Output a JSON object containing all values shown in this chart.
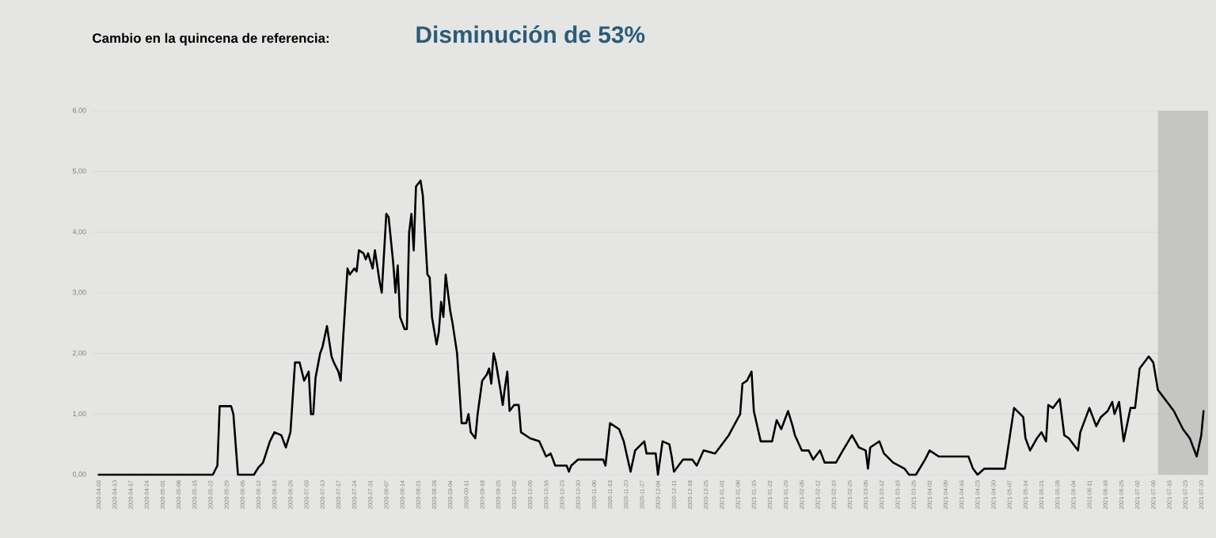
{
  "chart_data": {
    "type": "line",
    "title": "Cambio en la quincena de referencia:",
    "subtitle": "Disminución de 53%",
    "x": [
      "2020-04-03",
      "2020-05-23",
      "2020-05-25",
      "2020-05-26",
      "2020-05-31",
      "2020-06-01",
      "2020-06-03",
      "2020-06-10",
      "2020-06-12",
      "2020-06-14",
      "2020-06-17",
      "2020-06-19",
      "2020-06-22",
      "2020-06-24",
      "2020-06-26",
      "2020-06-28",
      "2020-06-30",
      "2020-07-02",
      "2020-07-04",
      "2020-07-05",
      "2020-07-06",
      "2020-07-07",
      "2020-07-09",
      "2020-07-10",
      "2020-07-12",
      "2020-07-14",
      "2020-07-15",
      "2020-07-17",
      "2020-07-18",
      "2020-07-19",
      "2020-07-21",
      "2020-07-22",
      "2020-07-24",
      "2020-07-25",
      "2020-07-26",
      "2020-07-28",
      "2020-07-29",
      "2020-07-30",
      "2020-08-01",
      "2020-08-02",
      "2020-08-04",
      "2020-08-05",
      "2020-08-07",
      "2020-08-08",
      "2020-08-10",
      "2020-08-11",
      "2020-08-12",
      "2020-08-13",
      "2020-08-15",
      "2020-08-16",
      "2020-08-17",
      "2020-08-18",
      "2020-08-19",
      "2020-08-20",
      "2020-08-22",
      "2020-08-23",
      "2020-08-25",
      "2020-08-26",
      "2020-08-27",
      "2020-08-29",
      "2020-08-30",
      "2020-08-31",
      "2020-09-01",
      "2020-09-02",
      "2020-09-04",
      "2020-09-05",
      "2020-09-07",
      "2020-09-09",
      "2020-09-11",
      "2020-09-12",
      "2020-09-13",
      "2020-09-15",
      "2020-09-16",
      "2020-09-18",
      "2020-09-20",
      "2020-09-21",
      "2020-09-22",
      "2020-09-23",
      "2020-09-24",
      "2020-09-26",
      "2020-09-27",
      "2020-09-28",
      "2020-09-29",
      "2020-09-30",
      "2020-10-02",
      "2020-10-04",
      "2020-10-05",
      "2020-10-09",
      "2020-10-13",
      "2020-10-16",
      "2020-10-18",
      "2020-10-20",
      "2020-10-25",
      "2020-10-26",
      "2020-10-27",
      "2020-10-30",
      "2020-11-10",
      "2020-11-11",
      "2020-11-13",
      "2020-11-17",
      "2020-11-19",
      "2020-11-22",
      "2020-11-24",
      "2020-11-28",
      "2020-11-29",
      "2020-12-03",
      "2020-12-04",
      "2020-12-06",
      "2020-12-09",
      "2020-12-10",
      "2020-12-11",
      "2020-12-15",
      "2020-12-19",
      "2020-12-21",
      "2020-12-24",
      "2020-12-29",
      "2021-01-01",
      "2021-01-04",
      "2021-01-09",
      "2021-01-10",
      "2021-01-12",
      "2021-01-14",
      "2021-01-15",
      "2021-01-18",
      "2021-01-23",
      "2021-01-25",
      "2021-01-27",
      "2021-01-30",
      "2021-02-01",
      "2021-02-02",
      "2021-02-05",
      "2021-02-08",
      "2021-02-10",
      "2021-02-13",
      "2021-02-15",
      "2021-02-20",
      "2021-02-23",
      "2021-02-27",
      "2021-03-02",
      "2021-03-05",
      "2021-03-06",
      "2021-03-07",
      "2021-03-11",
      "2021-03-13",
      "2021-03-17",
      "2021-03-22",
      "2021-03-24",
      "2021-03-27",
      "2021-03-31",
      "2021-04-02",
      "2021-04-06",
      "2021-04-19",
      "2021-04-21",
      "2021-04-23",
      "2021-04-26",
      "2021-05-05",
      "2021-05-09",
      "2021-05-13",
      "2021-05-14",
      "2021-05-16",
      "2021-05-19",
      "2021-05-21",
      "2021-05-23",
      "2021-05-24",
      "2021-05-26",
      "2021-05-29",
      "2021-05-31",
      "2021-06-02",
      "2021-06-06",
      "2021-06-07",
      "2021-06-11",
      "2021-06-14",
      "2021-06-16",
      "2021-06-19",
      "2021-06-21",
      "2021-06-22",
      "2021-06-24",
      "2021-06-26",
      "2021-06-29",
      "2021-07-01",
      "2021-07-03",
      "2021-07-07",
      "2021-07-09",
      "2021-07-11",
      "2021-07-15",
      "2021-07-18",
      "2021-07-22",
      "2021-07-25",
      "2021-07-28",
      "2021-07-30",
      "2021-07-31"
    ],
    "values": [
      0,
      0,
      0.15,
      1.13,
      1.13,
      1.0,
      0,
      0,
      0.12,
      0.2,
      0.55,
      0.7,
      0.65,
      0.45,
      0.7,
      1.85,
      1.85,
      1.55,
      1.7,
      1.0,
      1.0,
      1.6,
      2.0,
      2.1,
      2.45,
      1.95,
      1.85,
      1.7,
      1.55,
      2.2,
      3.4,
      3.3,
      3.4,
      3.35,
      3.7,
      3.65,
      3.55,
      3.65,
      3.4,
      3.7,
      3.2,
      3.0,
      4.3,
      4.25,
      3.5,
      3.0,
      3.45,
      2.6,
      2.4,
      2.4,
      4.0,
      4.3,
      3.7,
      4.75,
      4.85,
      4.6,
      3.3,
      3.25,
      2.6,
      2.15,
      2.35,
      2.85,
      2.6,
      3.3,
      2.7,
      2.5,
      2.0,
      0.85,
      0.85,
      1.0,
      0.7,
      0.6,
      1.0,
      1.55,
      1.65,
      1.75,
      1.5,
      2.0,
      1.85,
      1.4,
      1.15,
      1.45,
      1.7,
      1.05,
      1.15,
      1.15,
      0.7,
      0.6,
      0.55,
      0.3,
      0.35,
      0.15,
      0.15,
      0.05,
      0.15,
      0.25,
      0.25,
      0.15,
      0.85,
      0.75,
      0.55,
      0.05,
      0.4,
      0.55,
      0.35,
      0.35,
      0.0,
      0.55,
      0.5,
      0.3,
      0.05,
      0.25,
      0.25,
      0.15,
      0.4,
      0.35,
      0.5,
      0.65,
      1.0,
      1.5,
      1.55,
      1.7,
      1.05,
      0.55,
      0.55,
      0.9,
      0.75,
      1.05,
      0.8,
      0.65,
      0.4,
      0.4,
      0.25,
      0.4,
      0.2,
      0.2,
      0.4,
      0.65,
      0.45,
      0.4,
      0.1,
      0.45,
      0.55,
      0.35,
      0.2,
      0.1,
      0.0,
      0.0,
      0.25,
      0.4,
      0.3,
      0.3,
      0.1,
      0.0,
      0.1,
      0.1,
      1.1,
      0.95,
      0.6,
      0.4,
      0.6,
      0.7,
      0.55,
      1.15,
      1.1,
      1.25,
      0.65,
      0.6,
      0.4,
      0.7,
      1.1,
      0.8,
      0.95,
      1.05,
      1.2,
      1.0,
      1.2,
      0.55,
      1.1,
      1.1,
      1.75,
      1.95,
      1.85,
      1.4,
      1.2,
      1.05,
      0.75,
      0.6,
      0.3,
      0.65,
      1.05
    ],
    "color": "#000000",
    "xlim": [
      "2020-03-31",
      "2021-08-02"
    ],
    "ylim": [
      0,
      6
    ],
    "xticks": [
      "2020-04-03",
      "2020-04-10",
      "2020-04-17",
      "2020-04-24",
      "2020-05-01",
      "2020-05-08",
      "2020-05-15",
      "2020-05-22",
      "2020-05-29",
      "2020-06-05",
      "2020-06-12",
      "2020-06-19",
      "2020-06-26",
      "2020-07-03",
      "2020-07-10",
      "2020-07-17",
      "2020-07-24",
      "2020-07-31",
      "2020-08-07",
      "2020-08-14",
      "2020-08-21",
      "2020-08-28",
      "2020-09-04",
      "2020-09-11",
      "2020-09-18",
      "2020-09-25",
      "2020-10-02",
      "2020-10-09",
      "2020-10-16",
      "2020-10-23",
      "2020-10-30",
      "2020-11-06",
      "2020-11-13",
      "2020-11-20",
      "2020-11-27",
      "2020-12-04",
      "2020-12-11",
      "2020-12-18",
      "2020-12-25",
      "2021-01-01",
      "2021-01-08",
      "2021-01-15",
      "2021-01-22",
      "2021-01-29",
      "2021-02-05",
      "2021-02-12",
      "2021-02-19",
      "2021-02-26",
      "2021-03-05",
      "2021-03-12",
      "2021-03-19",
      "2021-03-26",
      "2021-04-02",
      "2021-04-09",
      "2021-04-16",
      "2021-04-23",
      "2021-04-30",
      "2021-05-07",
      "2021-05-14",
      "2021-05-21",
      "2021-05-28",
      "2021-06-04",
      "2021-06-11",
      "2021-06-18",
      "2021-06-25",
      "2021-07-02",
      "2021-07-09",
      "2021-07-16",
      "2021-07-23",
      "2021-07-30"
    ],
    "yticks": [
      {
        "value": 0,
        "label": "0,00"
      },
      {
        "value": 1,
        "label": "1,00"
      },
      {
        "value": 2,
        "label": "2,00"
      },
      {
        "value": 3,
        "label": "3,00"
      },
      {
        "value": 4,
        "label": "4,00"
      },
      {
        "value": 5,
        "label": "5,00"
      },
      {
        "value": 6,
        "label": "6,00"
      }
    ],
    "grid": "y",
    "bands": [
      {
        "axis": "x",
        "from": "2021-07-11",
        "to": "2021-08-02",
        "color": "#c5c6c4"
      }
    ]
  }
}
